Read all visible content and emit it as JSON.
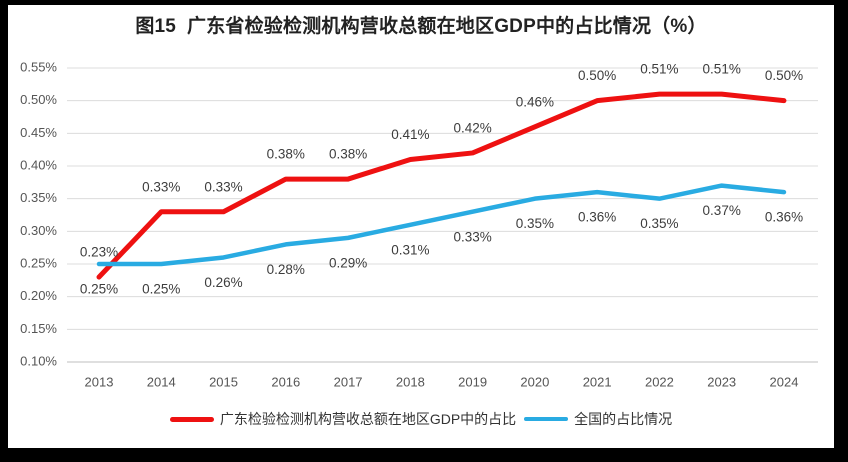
{
  "frame": {
    "background_color": "#000000",
    "panel_color": "#ffffff"
  },
  "chart_data": {
    "type": "line",
    "title": "图15  广东省检验检测机构营收总额在地区GDP中的占比情况（%）",
    "categories": [
      "2013",
      "2014",
      "2015",
      "2016",
      "2017",
      "2018",
      "2019",
      "2020",
      "2021",
      "2022",
      "2023",
      "2024"
    ],
    "series": [
      {
        "name": "广东检验检测机构营收总额在地区GDP中的占比",
        "color": "#ee1111",
        "label_position": "above",
        "values": [
          0.23,
          0.33,
          0.33,
          0.38,
          0.38,
          0.41,
          0.42,
          0.46,
          0.5,
          0.51,
          0.51,
          0.5
        ]
      },
      {
        "name": "全国的占比情况",
        "color": "#29abe2",
        "label_position": "below",
        "values": [
          0.25,
          0.25,
          0.26,
          0.28,
          0.29,
          0.31,
          0.33,
          0.35,
          0.36,
          0.35,
          0.37,
          0.36
        ]
      }
    ],
    "y_axis": {
      "min": 0.1,
      "max": 0.55,
      "step": 0.05,
      "tick_suffix": "%"
    },
    "data_labels": true,
    "label_suffix": "%",
    "grid": true,
    "legend_position": "bottom",
    "colors": {
      "gridline": "#dcdcdc",
      "axis_line": "#bfbfbf",
      "tick_text": "#555555",
      "data_label_text": "#3d3d3d"
    }
  }
}
